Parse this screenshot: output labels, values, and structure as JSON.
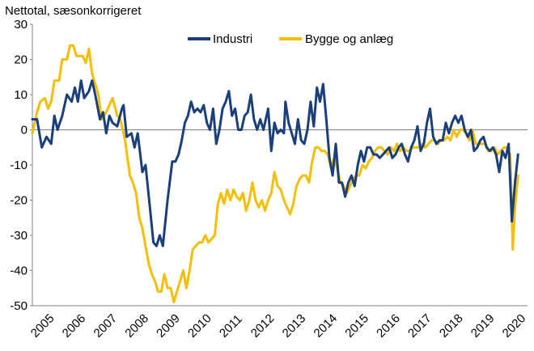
{
  "chart_data": {
    "type": "line",
    "title": "Nettotal, sæsonkorrigeret",
    "xlabel": "",
    "ylabel": "",
    "ylim": [
      -50,
      30
    ],
    "yticks": [
      30,
      20,
      10,
      0,
      -10,
      -20,
      -30,
      -40,
      -50
    ],
    "xlim": [
      2005,
      2020.75
    ],
    "xticks": [
      "2005",
      "2006",
      "2007",
      "2008",
      "2009",
      "2010",
      "2011",
      "2012",
      "2013",
      "2014",
      "2015",
      "2016",
      "2017",
      "2018",
      "2019",
      "2020"
    ],
    "grid": false,
    "legend_position": "top-center",
    "series": [
      {
        "name": "Industri",
        "color": "#1a3f7a",
        "points": [
          [
            2005.0,
            3
          ],
          [
            2005.15,
            3
          ],
          [
            2005.3,
            -5
          ],
          [
            2005.45,
            -2
          ],
          [
            2005.6,
            -4
          ],
          [
            2005.7,
            4
          ],
          [
            2005.8,
            0
          ],
          [
            2005.95,
            4
          ],
          [
            2006.1,
            10
          ],
          [
            2006.25,
            8
          ],
          [
            2006.35,
            12
          ],
          [
            2006.45,
            8
          ],
          [
            2006.55,
            14
          ],
          [
            2006.65,
            9
          ],
          [
            2006.8,
            11
          ],
          [
            2006.9,
            14
          ],
          [
            2007.0,
            10
          ],
          [
            2007.15,
            3
          ],
          [
            2007.25,
            5
          ],
          [
            2007.35,
            -1
          ],
          [
            2007.45,
            4
          ],
          [
            2007.55,
            2
          ],
          [
            2007.7,
            1
          ],
          [
            2007.85,
            6
          ],
          [
            2007.9,
            7
          ],
          [
            2008.0,
            -2
          ],
          [
            2008.15,
            -1
          ],
          [
            2008.25,
            -5
          ],
          [
            2008.35,
            -1
          ],
          [
            2008.5,
            -12
          ],
          [
            2008.6,
            -10
          ],
          [
            2008.75,
            -23
          ],
          [
            2008.85,
            -32
          ],
          [
            2008.95,
            -33
          ],
          [
            2009.05,
            -30
          ],
          [
            2009.15,
            -33
          ],
          [
            2009.3,
            -20
          ],
          [
            2009.45,
            -9
          ],
          [
            2009.55,
            -9
          ],
          [
            2009.65,
            -7
          ],
          [
            2009.75,
            -3
          ],
          [
            2009.85,
            2
          ],
          [
            2009.95,
            4
          ],
          [
            2010.05,
            8
          ],
          [
            2010.15,
            5
          ],
          [
            2010.25,
            6
          ],
          [
            2010.35,
            5
          ],
          [
            2010.45,
            7
          ],
          [
            2010.55,
            2
          ],
          [
            2010.65,
            0
          ],
          [
            2010.75,
            6
          ],
          [
            2010.85,
            -4
          ],
          [
            2010.95,
            0
          ],
          [
            2011.05,
            6
          ],
          [
            2011.15,
            8
          ],
          [
            2011.25,
            11
          ],
          [
            2011.35,
            4
          ],
          [
            2011.45,
            6
          ],
          [
            2011.55,
            0
          ],
          [
            2011.65,
            0
          ],
          [
            2011.75,
            4
          ],
          [
            2011.85,
            5
          ],
          [
            2011.95,
            10
          ],
          [
            2012.05,
            3
          ],
          [
            2012.15,
            0
          ],
          [
            2012.25,
            3
          ],
          [
            2012.35,
            0
          ],
          [
            2012.5,
            6
          ],
          [
            2012.6,
            -6
          ],
          [
            2012.7,
            2
          ],
          [
            2012.8,
            -1
          ],
          [
            2012.9,
            0
          ],
          [
            2013.0,
            -1
          ],
          [
            2013.05,
            8
          ],
          [
            2013.15,
            2
          ],
          [
            2013.25,
            -1
          ],
          [
            2013.35,
            -4
          ],
          [
            2013.45,
            3
          ],
          [
            2013.55,
            -3
          ],
          [
            2013.65,
            -4
          ],
          [
            2013.75,
            0
          ],
          [
            2013.85,
            8
          ],
          [
            2013.95,
            1
          ],
          [
            2014.05,
            12
          ],
          [
            2014.15,
            8
          ],
          [
            2014.25,
            13
          ],
          [
            2014.35,
            3
          ],
          [
            2014.45,
            -8
          ],
          [
            2014.55,
            -13
          ],
          [
            2014.65,
            -4
          ],
          [
            2014.75,
            -15
          ],
          [
            2014.85,
            -15
          ],
          [
            2014.95,
            -19
          ],
          [
            2015.05,
            -15
          ],
          [
            2015.15,
            -13
          ],
          [
            2015.25,
            -16
          ],
          [
            2015.35,
            -10
          ],
          [
            2015.45,
            -6
          ],
          [
            2015.55,
            -9
          ],
          [
            2015.65,
            -5
          ],
          [
            2015.75,
            -5
          ],
          [
            2015.85,
            -7
          ],
          [
            2015.95,
            -7
          ],
          [
            2016.05,
            -8
          ],
          [
            2016.15,
            -7
          ],
          [
            2016.25,
            -6
          ],
          [
            2016.35,
            -5
          ],
          [
            2016.45,
            -8
          ],
          [
            2016.55,
            -7
          ],
          [
            2016.65,
            -5
          ],
          [
            2016.75,
            -4
          ],
          [
            2016.85,
            -7
          ],
          [
            2016.95,
            -9
          ],
          [
            2017.05,
            -5
          ],
          [
            2017.15,
            -3
          ],
          [
            2017.25,
            1
          ],
          [
            2017.35,
            -6
          ],
          [
            2017.45,
            -4
          ],
          [
            2017.55,
            2
          ],
          [
            2017.65,
            6
          ],
          [
            2017.75,
            -2
          ],
          [
            2017.85,
            -4
          ],
          [
            2017.95,
            -3
          ],
          [
            2018.05,
            -3
          ],
          [
            2018.15,
            2
          ],
          [
            2018.25,
            -1
          ],
          [
            2018.35,
            2
          ],
          [
            2018.45,
            4
          ],
          [
            2018.55,
            2
          ],
          [
            2018.65,
            4
          ],
          [
            2018.75,
            0
          ],
          [
            2018.85,
            -2
          ],
          [
            2018.95,
            0
          ],
          [
            2019.05,
            -6
          ],
          [
            2019.15,
            -5
          ],
          [
            2019.25,
            -3
          ],
          [
            2019.35,
            -2
          ],
          [
            2019.45,
            -5
          ],
          [
            2019.55,
            -6
          ],
          [
            2019.65,
            -5
          ],
          [
            2019.75,
            -7
          ],
          [
            2019.85,
            -12
          ],
          [
            2019.95,
            -6
          ],
          [
            2020.05,
            -8
          ],
          [
            2020.15,
            -4
          ],
          [
            2020.25,
            -26
          ],
          [
            2020.35,
            -15
          ],
          [
            2020.45,
            -7
          ]
        ]
      },
      {
        "name": "Bygge og anlæg",
        "color": "#f5be00",
        "points": [
          [
            2005.0,
            -1
          ],
          [
            2005.15,
            5
          ],
          [
            2005.25,
            8
          ],
          [
            2005.4,
            9
          ],
          [
            2005.5,
            6
          ],
          [
            2005.6,
            8
          ],
          [
            2005.7,
            14
          ],
          [
            2005.85,
            14
          ],
          [
            2005.95,
            20
          ],
          [
            2006.1,
            20
          ],
          [
            2006.2,
            24
          ],
          [
            2006.3,
            24
          ],
          [
            2006.4,
            21
          ],
          [
            2006.5,
            21
          ],
          [
            2006.6,
            21
          ],
          [
            2006.7,
            19
          ],
          [
            2006.8,
            23
          ],
          [
            2006.9,
            16
          ],
          [
            2007.0,
            13
          ],
          [
            2007.1,
            10
          ],
          [
            2007.2,
            3
          ],
          [
            2007.35,
            5
          ],
          [
            2007.45,
            7
          ],
          [
            2007.55,
            9
          ],
          [
            2007.7,
            4
          ],
          [
            2007.8,
            3
          ],
          [
            2007.95,
            -3
          ],
          [
            2008.1,
            -13
          ],
          [
            2008.2,
            -15
          ],
          [
            2008.3,
            -18
          ],
          [
            2008.4,
            -25
          ],
          [
            2008.5,
            -28
          ],
          [
            2008.6,
            -33
          ],
          [
            2008.7,
            -38
          ],
          [
            2008.8,
            -41
          ],
          [
            2008.9,
            -43
          ],
          [
            2009.0,
            -46
          ],
          [
            2009.1,
            -46
          ],
          [
            2009.2,
            -41
          ],
          [
            2009.3,
            -45
          ],
          [
            2009.4,
            -45
          ],
          [
            2009.5,
            -49
          ],
          [
            2009.6,
            -46
          ],
          [
            2009.7,
            -43
          ],
          [
            2009.8,
            -40
          ],
          [
            2009.9,
            -45
          ],
          [
            2010.0,
            -40
          ],
          [
            2010.1,
            -34
          ],
          [
            2010.2,
            -33
          ],
          [
            2010.3,
            -32
          ],
          [
            2010.4,
            -32
          ],
          [
            2010.5,
            -30
          ],
          [
            2010.6,
            -32
          ],
          [
            2010.7,
            -31
          ],
          [
            2010.8,
            -30
          ],
          [
            2010.9,
            -21
          ],
          [
            2011.0,
            -18
          ],
          [
            2011.1,
            -21
          ],
          [
            2011.2,
            -17
          ],
          [
            2011.3,
            -20
          ],
          [
            2011.4,
            -17
          ],
          [
            2011.5,
            -19
          ],
          [
            2011.6,
            -20
          ],
          [
            2011.7,
            -18
          ],
          [
            2011.8,
            -23
          ],
          [
            2011.9,
            -20
          ],
          [
            2012.0,
            -15
          ],
          [
            2012.1,
            -20
          ],
          [
            2012.2,
            -22
          ],
          [
            2012.3,
            -20
          ],
          [
            2012.4,
            -23
          ],
          [
            2012.5,
            -20
          ],
          [
            2012.6,
            -18
          ],
          [
            2012.7,
            -12
          ],
          [
            2012.8,
            -16
          ],
          [
            2012.9,
            -17
          ],
          [
            2013.0,
            -20
          ],
          [
            2013.1,
            -22
          ],
          [
            2013.2,
            -24
          ],
          [
            2013.3,
            -21
          ],
          [
            2013.4,
            -16
          ],
          [
            2013.5,
            -14
          ],
          [
            2013.6,
            -13
          ],
          [
            2013.7,
            -13
          ],
          [
            2013.8,
            -15
          ],
          [
            2013.9,
            -9
          ],
          [
            2014.0,
            -5
          ],
          [
            2014.1,
            -5
          ],
          [
            2014.2,
            -6
          ],
          [
            2014.3,
            -6
          ],
          [
            2014.4,
            -7
          ],
          [
            2014.5,
            -11
          ],
          [
            2014.6,
            -8
          ],
          [
            2014.7,
            -11
          ],
          [
            2014.8,
            -15
          ],
          [
            2014.9,
            -16
          ],
          [
            2015.0,
            -18
          ],
          [
            2015.1,
            -16
          ],
          [
            2015.2,
            -14
          ],
          [
            2015.3,
            -13
          ],
          [
            2015.4,
            -13
          ],
          [
            2015.5,
            -10
          ],
          [
            2015.6,
            -11
          ],
          [
            2015.7,
            -9
          ],
          [
            2015.8,
            -8
          ],
          [
            2015.9,
            -6
          ],
          [
            2016.0,
            -5
          ],
          [
            2016.1,
            -5
          ],
          [
            2016.2,
            -6
          ],
          [
            2016.3,
            -7
          ],
          [
            2016.4,
            -5
          ],
          [
            2016.5,
            -6
          ],
          [
            2016.6,
            -4
          ],
          [
            2016.7,
            -6
          ],
          [
            2016.8,
            -5
          ],
          [
            2016.9,
            -6
          ],
          [
            2017.0,
            -6
          ],
          [
            2017.1,
            -5
          ],
          [
            2017.2,
            -5
          ],
          [
            2017.3,
            -5
          ],
          [
            2017.4,
            -4
          ],
          [
            2017.5,
            -5
          ],
          [
            2017.6,
            -4
          ],
          [
            2017.7,
            -3
          ],
          [
            2017.8,
            -3
          ],
          [
            2017.9,
            -4
          ],
          [
            2018.0,
            -3
          ],
          [
            2018.1,
            -3
          ],
          [
            2018.2,
            -2
          ],
          [
            2018.3,
            -3
          ],
          [
            2018.4,
            0
          ],
          [
            2018.5,
            -2
          ],
          [
            2018.6,
            0
          ],
          [
            2018.7,
            0
          ],
          [
            2018.8,
            -1
          ],
          [
            2018.9,
            -3
          ],
          [
            2019.0,
            0
          ],
          [
            2019.1,
            -4
          ],
          [
            2019.2,
            -4
          ],
          [
            2019.3,
            -4
          ],
          [
            2019.4,
            -4
          ],
          [
            2019.5,
            -6
          ],
          [
            2019.6,
            -6
          ],
          [
            2019.7,
            -5
          ],
          [
            2019.8,
            -7
          ],
          [
            2019.9,
            -6
          ],
          [
            2020.0,
            -5
          ],
          [
            2020.1,
            -5
          ],
          [
            2020.2,
            -7
          ],
          [
            2020.28,
            -34
          ],
          [
            2020.35,
            -22
          ],
          [
            2020.45,
            -13
          ]
        ]
      }
    ]
  }
}
